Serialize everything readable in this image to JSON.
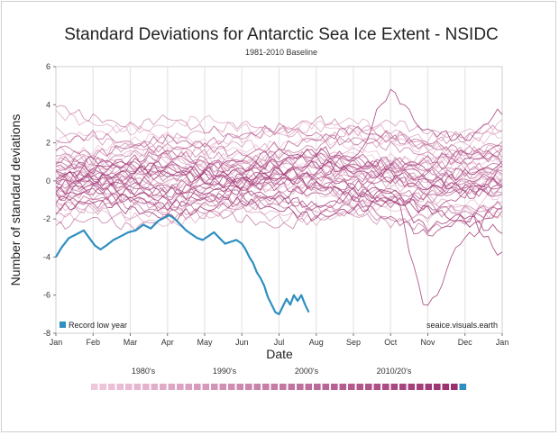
{
  "chart_data": {
    "type": "line",
    "title": "Standard Deviations for Antarctic Sea Ice Extent - NSIDC",
    "subtitle": "1981-2010 Baseline",
    "xlabel": "Date",
    "ylabel": "Number of standard deviations",
    "x_ticks": [
      "Jan",
      "Feb",
      "Mar",
      "Apr",
      "May",
      "Jun",
      "Jul",
      "Aug",
      "Sep",
      "Oct",
      "Nov",
      "Dec",
      "Jan"
    ],
    "ylim": [
      -8,
      6
    ],
    "y_ticks": [
      -8,
      -6,
      -4,
      -2,
      0,
      2,
      4,
      6
    ],
    "grid": "vertical monthly lines",
    "legend": {
      "label": "Record low year",
      "color": "#2f8fc0",
      "placement": "bottom-left"
    },
    "annotation": "seaice.visuals.earth",
    "decade_labels": [
      "1980's",
      "1990's",
      "2000's",
      "2010/20's"
    ],
    "year_swatch_count": 44,
    "colors": {
      "old_year": "#f0c8dc",
      "new_year": "#9a2f6e",
      "record": "#2f8fc0"
    },
    "series": [
      {
        "label": "Record low year",
        "color": "#2f8fc0",
        "x_month": [
          0,
          0.15,
          0.35,
          0.55,
          0.75,
          0.9,
          1.05,
          1.2,
          1.35,
          1.55,
          1.75,
          1.95,
          2.15,
          2.35,
          2.55,
          2.75,
          2.95,
          3.05,
          3.2,
          3.35,
          3.5,
          3.65,
          3.8,
          3.95,
          4.1,
          4.25,
          4.4,
          4.55,
          4.7,
          4.85,
          5.0,
          5.1,
          5.2,
          5.3,
          5.4,
          5.5,
          5.6,
          5.7,
          5.8,
          5.9,
          6.0,
          6.1,
          6.2,
          6.3,
          6.4,
          6.5,
          6.6,
          6.7,
          6.8
        ],
        "y": [
          -4.0,
          -3.5,
          -3.0,
          -2.8,
          -2.6,
          -3.0,
          -3.4,
          -3.6,
          -3.4,
          -3.1,
          -2.9,
          -2.7,
          -2.6,
          -2.3,
          -2.5,
          -2.1,
          -1.9,
          -1.8,
          -2.0,
          -2.3,
          -2.6,
          -2.8,
          -3.0,
          -3.1,
          -2.9,
          -2.7,
          -3.0,
          -3.3,
          -3.2,
          -3.1,
          -3.3,
          -3.6,
          -4.0,
          -4.3,
          -4.8,
          -5.1,
          -5.5,
          -6.1,
          -6.5,
          -6.9,
          -7.0,
          -6.6,
          -6.2,
          -6.5,
          -6.0,
          -6.3,
          -6.0,
          -6.5,
          -6.9
        ]
      }
    ],
    "background_years_note_free": true,
    "background_series": [
      {
        "shade": 0.0,
        "y": [
          0.2,
          0.7,
          1.3,
          1.8,
          1.5,
          1.0,
          0.6,
          0.9,
          1.4,
          1.0,
          0.5,
          0.8,
          1.2
        ]
      },
      {
        "shade": 0.03,
        "y": [
          -0.6,
          -0.2,
          0.3,
          0.0,
          -0.4,
          -0.1,
          0.4,
          0.8,
          0.5,
          0.1,
          -0.3,
          0.2,
          0.6
        ]
      },
      {
        "shade": 0.05,
        "y": [
          1.2,
          1.6,
          2.1,
          2.4,
          2.0,
          1.6,
          1.9,
          2.3,
          1.8,
          1.2,
          0.9,
          1.3,
          1.7
        ]
      },
      {
        "shade": 0.07,
        "y": [
          -1.4,
          -1.0,
          -0.6,
          -0.9,
          -1.2,
          -0.8,
          -0.4,
          -0.7,
          -1.1,
          -1.5,
          -1.9,
          -1.2,
          -0.8
        ]
      },
      {
        "shade": 0.09,
        "y": [
          0.8,
          0.5,
          0.2,
          0.6,
          1.0,
          1.4,
          1.1,
          0.7,
          0.3,
          0.6,
          1.0,
          1.4,
          1.1
        ]
      },
      {
        "shade": 0.11,
        "y": [
          2.1,
          2.5,
          2.8,
          2.3,
          1.9,
          2.2,
          2.6,
          3.0,
          2.5,
          2.0,
          1.6,
          2.0,
          2.4
        ]
      },
      {
        "shade": 0.14,
        "y": [
          -0.2,
          0.3,
          0.7,
          1.1,
          0.8,
          0.3,
          -0.1,
          0.3,
          0.7,
          0.4,
          0.0,
          -0.4,
          0.1
        ]
      },
      {
        "shade": 0.16,
        "y": [
          -2.0,
          -1.6,
          -1.9,
          -2.3,
          -1.9,
          -1.4,
          -1.7,
          -2.1,
          -1.6,
          -1.2,
          -0.9,
          -1.4,
          -1.8
        ]
      },
      {
        "shade": 0.18,
        "y": [
          0.5,
          1.0,
          1.5,
          1.2,
          0.7,
          1.0,
          1.4,
          1.1,
          0.6,
          0.9,
          1.3,
          0.9,
          0.4
        ]
      },
      {
        "shade": 0.2,
        "y": [
          3.5,
          3.0,
          2.6,
          2.9,
          3.3,
          2.8,
          2.4,
          2.8,
          3.2,
          2.6,
          2.2,
          2.6,
          3.0
        ]
      },
      {
        "shade": 0.23,
        "y": [
          -0.9,
          -0.5,
          -0.9,
          -1.3,
          -0.9,
          -0.4,
          0.0,
          -0.4,
          -0.8,
          -0.4,
          0.0,
          0.4,
          0.0
        ]
      },
      {
        "shade": 0.25,
        "y": [
          1.6,
          1.2,
          0.8,
          1.2,
          1.6,
          2.0,
          1.6,
          1.2,
          1.6,
          2.2,
          1.8,
          1.4,
          1.8
        ]
      },
      {
        "shade": 0.27,
        "y": [
          -1.1,
          -1.5,
          -1.9,
          -1.5,
          -1.1,
          -1.5,
          -2.0,
          -1.6,
          -1.2,
          -0.8,
          -1.2,
          -1.6,
          -1.2
        ]
      },
      {
        "shade": 0.3,
        "y": [
          0.0,
          0.4,
          0.0,
          -0.4,
          0.0,
          0.5,
          0.9,
          0.5,
          0.1,
          0.5,
          0.9,
          0.5,
          0.1
        ]
      },
      {
        "shade": 0.32,
        "y": [
          2.6,
          2.2,
          1.8,
          2.2,
          2.6,
          3.0,
          2.6,
          2.1,
          2.6,
          3.1,
          2.6,
          2.2,
          2.6
        ]
      },
      {
        "shade": 0.34,
        "y": [
          -0.4,
          -0.8,
          -0.4,
          0.0,
          0.4,
          0.0,
          -0.5,
          -0.1,
          0.3,
          -0.1,
          -0.5,
          -0.1,
          0.3
        ]
      },
      {
        "shade": 0.36,
        "y": [
          1.0,
          1.4,
          1.8,
          1.4,
          1.0,
          0.6,
          1.0,
          1.4,
          1.0,
          0.6,
          1.0,
          1.6,
          1.2
        ]
      },
      {
        "shade": 0.39,
        "y": [
          -1.8,
          -1.4,
          -1.0,
          -1.4,
          -1.8,
          -1.4,
          -1.0,
          -1.4,
          -1.8,
          -2.2,
          -1.8,
          -1.4,
          -1.8
        ]
      },
      {
        "shade": 0.41,
        "y": [
          0.3,
          -0.1,
          0.3,
          0.7,
          0.3,
          -0.1,
          0.3,
          0.8,
          0.4,
          0.0,
          0.4,
          0.8,
          0.4
        ]
      },
      {
        "shade": 0.43,
        "y": [
          3.9,
          3.3,
          2.9,
          3.3,
          2.7,
          2.3,
          2.7,
          3.2,
          2.8,
          2.4,
          2.0,
          2.4,
          2.8
        ]
      },
      {
        "shade": 0.45,
        "y": [
          -0.7,
          -0.3,
          0.1,
          -0.3,
          -0.7,
          -1.1,
          -0.7,
          -0.3,
          -0.7,
          -1.1,
          -0.7,
          -0.3,
          -0.7
        ]
      },
      {
        "shade": 0.48,
        "y": [
          1.4,
          1.0,
          1.4,
          1.8,
          1.4,
          1.0,
          1.4,
          1.8,
          2.2,
          1.8,
          1.4,
          1.0,
          1.4
        ]
      },
      {
        "shade": 0.5,
        "y": [
          -2.4,
          -2.0,
          -2.4,
          -2.0,
          -1.6,
          -2.0,
          -2.4,
          -2.0,
          -1.6,
          -2.0,
          -2.5,
          -2.1,
          -1.7
        ]
      },
      {
        "shade": 0.52,
        "y": [
          0.6,
          1.0,
          0.6,
          0.2,
          0.6,
          1.0,
          0.6,
          0.2,
          0.6,
          1.0,
          0.6,
          0.2,
          0.6
        ]
      },
      {
        "shade": 0.55,
        "y": [
          -0.1,
          0.3,
          0.7,
          0.3,
          -0.1,
          -0.5,
          -0.1,
          0.3,
          -0.1,
          -0.5,
          -0.9,
          -0.5,
          -0.1
        ]
      },
      {
        "shade": 0.57,
        "y": [
          2.0,
          2.4,
          2.0,
          1.6,
          2.0,
          2.4,
          2.8,
          2.4,
          2.0,
          2.4,
          2.0,
          1.6,
          2.0
        ]
      },
      {
        "shade": 0.59,
        "y": [
          -1.3,
          -0.9,
          -1.3,
          -1.7,
          -1.3,
          -0.9,
          -1.3,
          -1.7,
          -1.3,
          -0.9,
          -1.3,
          -1.7,
          -1.3
        ]
      },
      {
        "shade": 0.61,
        "y": [
          0.9,
          0.5,
          0.9,
          1.3,
          0.9,
          0.5,
          0.9,
          1.3,
          0.9,
          0.5,
          0.1,
          0.5,
          0.9
        ]
      },
      {
        "shade": 0.64,
        "y": [
          -0.5,
          -0.1,
          -0.5,
          -0.9,
          -0.5,
          -0.1,
          0.3,
          -0.1,
          -0.5,
          -0.9,
          -0.5,
          -0.1,
          -0.5
        ]
      },
      {
        "shade": 0.66,
        "y": [
          1.8,
          1.4,
          1.8,
          2.2,
          1.8,
          1.4,
          1.8,
          2.2,
          2.7,
          2.2,
          1.8,
          1.4,
          1.8
        ]
      },
      {
        "shade": 0.68,
        "y": [
          0.1,
          0.5,
          0.1,
          -0.3,
          0.1,
          0.5,
          0.1,
          -0.3,
          0.1,
          0.6,
          0.1,
          -0.3,
          0.1
        ]
      },
      {
        "shade": 0.7,
        "y": [
          -0.8,
          -1.2,
          -0.8,
          -0.4,
          -0.8,
          -1.2,
          -0.8,
          -0.4,
          -0.8,
          -1.2,
          -0.8,
          -0.4,
          -0.8
        ]
      },
      {
        "shade": 0.73,
        "y": [
          1.1,
          0.7,
          1.1,
          1.5,
          1.1,
          0.7,
          1.1,
          1.5,
          1.1,
          0.7,
          1.1,
          1.5,
          1.1
        ]
      },
      {
        "shade": 0.75,
        "y": [
          -0.3,
          0.1,
          -0.3,
          -0.7,
          -0.3,
          0.1,
          -0.3,
          -0.7,
          -0.3,
          0.1,
          -0.3,
          -0.7,
          -0.3
        ]
      },
      {
        "shade": 0.77,
        "y": [
          0.4,
          0.0,
          0.4,
          0.8,
          0.4,
          0.0,
          0.4,
          0.8,
          1.3,
          0.8,
          0.4,
          0.0,
          0.4
        ]
      },
      {
        "shade": 0.8,
        "y": [
          -1.0,
          -0.6,
          -1.0,
          -1.4,
          -1.0,
          -0.6,
          -1.0,
          -1.4,
          -1.0,
          -2.0,
          -2.8,
          -2.0,
          -1.4
        ]
      },
      {
        "shade": 0.82,
        "y": [
          0.7,
          1.1,
          0.7,
          0.3,
          0.7,
          1.1,
          1.5,
          1.1,
          0.7,
          1.1,
          0.7,
          1.1,
          1.5
        ]
      },
      {
        "shade": 0.84,
        "y": [
          -0.2,
          0.2,
          -0.2,
          -0.6,
          -0.2,
          0.2,
          0.6,
          0.2,
          -0.2,
          -0.6,
          -1.5,
          -0.8,
          -0.3
        ]
      },
      {
        "shade": 0.86,
        "y": [
          0.0,
          -0.4,
          0.0,
          0.4,
          0.0,
          -0.4,
          0.0,
          0.4,
          0.8,
          0.4,
          0.0,
          -0.4,
          0.0
        ]
      },
      {
        "shade": 0.89,
        "y": [
          -0.9,
          -0.5,
          -0.9,
          -1.3,
          -0.9,
          -0.5,
          -0.9,
          -1.3,
          -0.9,
          -0.5,
          -6.5,
          -3.0,
          -1.5
        ]
      },
      {
        "shade": 0.91,
        "y": [
          0.2,
          0.6,
          1.0,
          0.6,
          0.2,
          0.6,
          1.0,
          1.6,
          1.2,
          4.6,
          2.6,
          2.2,
          3.6
        ]
      },
      {
        "shade": 0.93,
        "y": [
          -0.6,
          -0.2,
          -0.6,
          -1.0,
          -0.6,
          -0.2,
          0.2,
          -0.2,
          -0.6,
          -1.0,
          -2.4,
          -1.8,
          -3.8
        ]
      },
      {
        "shade": 0.95,
        "y": [
          0.5,
          0.1,
          0.5,
          0.9,
          0.5,
          0.1,
          0.5,
          0.9,
          0.5,
          0.1,
          -0.4,
          0.4,
          0.8
        ]
      },
      {
        "shade": 0.98,
        "y": [
          -1.5,
          -1.1,
          -1.5,
          -1.9,
          -1.5,
          -1.1,
          -1.5,
          -1.9,
          -1.5,
          -1.1,
          -1.5,
          -2.2,
          -2.6
        ]
      }
    ]
  }
}
